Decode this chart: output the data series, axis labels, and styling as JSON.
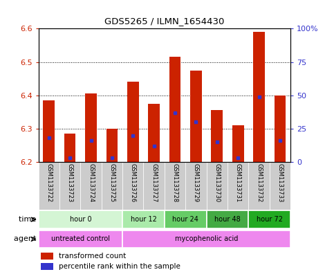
{
  "title": "GDS5265 / ILMN_1654430",
  "samples": [
    "GSM1133722",
    "GSM1133723",
    "GSM1133724",
    "GSM1133725",
    "GSM1133726",
    "GSM1133727",
    "GSM1133728",
    "GSM1133729",
    "GSM1133730",
    "GSM1133731",
    "GSM1133732",
    "GSM1133733"
  ],
  "transformed_counts": [
    6.385,
    6.285,
    6.405,
    6.3,
    6.44,
    6.375,
    6.515,
    6.475,
    6.355,
    6.31,
    6.59,
    6.4
  ],
  "percentile_ranks": [
    18,
    3,
    16,
    3,
    20,
    12,
    37,
    30,
    15,
    3,
    49,
    16
  ],
  "ylim_left": [
    6.2,
    6.6
  ],
  "ylim_right": [
    0,
    100
  ],
  "left_ticks": [
    6.2,
    6.3,
    6.4,
    6.5,
    6.6
  ],
  "right_ticks": [
    0,
    25,
    50,
    75,
    100
  ],
  "right_tick_labels": [
    "0",
    "25",
    "50",
    "75",
    "100%"
  ],
  "bar_color": "#cc2200",
  "dot_color": "#3333cc",
  "bar_width": 0.55,
  "time_groups": [
    {
      "label": "hour 0",
      "start": 0,
      "end": 3,
      "color": "#d4f5d4"
    },
    {
      "label": "hour 12",
      "start": 4,
      "end": 5,
      "color": "#aaeaaa"
    },
    {
      "label": "hour 24",
      "start": 6,
      "end": 7,
      "color": "#66cc66"
    },
    {
      "label": "hour 48",
      "start": 8,
      "end": 9,
      "color": "#44aa44"
    },
    {
      "label": "hour 72",
      "start": 10,
      "end": 11,
      "color": "#22aa22"
    }
  ],
  "agent_groups": [
    {
      "label": "untreated control",
      "start": 0,
      "end": 3,
      "color": "#ee88ee"
    },
    {
      "label": "mycophenolic acid",
      "start": 4,
      "end": 11,
      "color": "#ee88ee"
    }
  ],
  "sample_bg": "#cccccc",
  "bg_color": "#ffffff",
  "tick_color_left": "#cc2200",
  "tick_color_right": "#3333cc"
}
